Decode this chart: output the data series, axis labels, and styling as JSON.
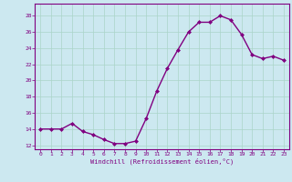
{
  "x": [
    0,
    1,
    2,
    3,
    4,
    5,
    6,
    7,
    8,
    9,
    10,
    11,
    12,
    13,
    14,
    15,
    16,
    17,
    18,
    19,
    20,
    21,
    22,
    23
  ],
  "y": [
    14,
    14,
    14,
    14.7,
    13.7,
    13.3,
    12.7,
    12.2,
    12.2,
    12.5,
    15.3,
    18.7,
    21.5,
    23.8,
    26.0,
    27.2,
    27.2,
    28.0,
    27.5,
    25.7,
    23.2,
    22.7,
    23.0,
    22.5
  ],
  "line_color": "#800080",
  "marker": "D",
  "markersize": 2,
  "linewidth": 1.0,
  "xlabel": "Windchill (Refroidissement éolien,°C)",
  "xlim": [
    -0.5,
    23.5
  ],
  "ylim": [
    11.5,
    29.5
  ],
  "yticks": [
    12,
    14,
    16,
    18,
    20,
    22,
    24,
    26,
    28
  ],
  "xticks": [
    0,
    1,
    2,
    3,
    4,
    5,
    6,
    7,
    8,
    9,
    10,
    11,
    12,
    13,
    14,
    15,
    16,
    17,
    18,
    19,
    20,
    21,
    22,
    23
  ],
  "bg_color": "#cce8f0",
  "grid_color": "#aad4c8",
  "tick_color": "#800080",
  "label_color": "#800080"
}
